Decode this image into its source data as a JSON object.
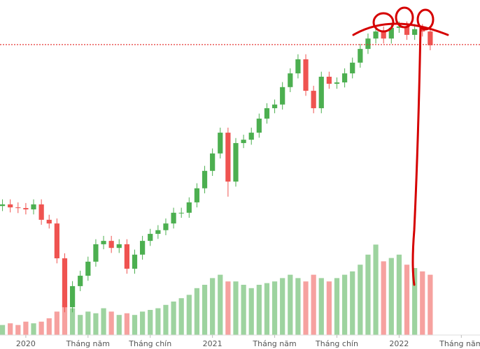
{
  "chart_data": {
    "type": "candlestick",
    "x": [
      -1.5,
      -1,
      -0.5,
      0,
      0.5,
      1,
      1.5,
      2,
      2.5,
      3,
      3.5,
      4,
      4.5,
      5,
      5.5,
      6,
      6.5,
      7,
      7.5,
      8,
      8.5,
      9,
      9.5,
      10,
      10.5,
      11,
      11.5,
      12,
      12.5,
      13,
      13.5,
      14,
      14.5,
      15,
      15.5,
      16,
      16.5,
      17,
      17.5,
      18,
      18.5,
      19,
      19.5,
      20,
      20.5,
      21,
      21.5,
      22,
      22.5,
      23,
      23.5,
      24,
      24.5,
      25,
      25.5,
      26
    ],
    "open": [
      38.5,
      39,
      38.1,
      37.9,
      37.5,
      39,
      34.4,
      33.3,
      22.9,
      8.3,
      14.6,
      17.7,
      21.9,
      27.1,
      28.1,
      26,
      27.1,
      19.8,
      24,
      28.1,
      30.2,
      31.3,
      33.3,
      36.5,
      36.5,
      39.6,
      43.8,
      49,
      54.2,
      60.4,
      45.8,
      57.3,
      58.3,
      60.4,
      64.6,
      67.7,
      68.8,
      74,
      78.1,
      82.3,
      72.9,
      67.7,
      77.1,
      75,
      75.4,
      78.1,
      81.3,
      85.4,
      88.5,
      90.6,
      88.5,
      91.7,
      92.1,
      89.6,
      91.3,
      90.6
    ],
    "high": [
      40.5,
      40.5,
      39.6,
      39.4,
      40.5,
      40.5,
      35.9,
      34.8,
      24.4,
      16.1,
      19.2,
      23.4,
      28.6,
      29.6,
      29.6,
      28.6,
      28.6,
      25.5,
      29.6,
      31.7,
      32.8,
      34.8,
      38,
      38,
      41.1,
      45.3,
      50.5,
      55.7,
      61.9,
      61.9,
      58.8,
      59.8,
      61.9,
      66.1,
      69.2,
      70.3,
      75.5,
      79.6,
      83.8,
      83.8,
      74.4,
      78.6,
      78.6,
      76.9,
      79.6,
      82.8,
      86.9,
      90,
      92.1,
      92.1,
      93.2,
      93.6,
      93.6,
      92.8,
      92.8,
      92.1
    ],
    "low": [
      37,
      36.6,
      36.4,
      36,
      36,
      32.9,
      31.8,
      21.4,
      6.8,
      6.8,
      13.1,
      16.2,
      20.4,
      25.6,
      24.5,
      24.5,
      18.3,
      18.3,
      22.5,
      26.6,
      28.7,
      29.8,
      31.8,
      35,
      35,
      38.1,
      42.3,
      47.5,
      52.7,
      41.3,
      44.3,
      55.8,
      56.8,
      58.9,
      63.1,
      66.2,
      67.3,
      72.5,
      76.6,
      71.4,
      66.2,
      66.2,
      73.5,
      73.5,
      73.9,
      76.6,
      79.8,
      83.9,
      87,
      87,
      87,
      90.2,
      88.1,
      88.1,
      89.1,
      85
    ],
    "close": [
      39,
      38.1,
      37.9,
      37.5,
      39,
      34.4,
      33.3,
      22.9,
      8.3,
      14.6,
      17.7,
      21.9,
      27.1,
      28.1,
      26,
      27.1,
      19.8,
      24,
      28.1,
      30.2,
      31.3,
      33.3,
      36.5,
      36.5,
      39.6,
      43.8,
      49,
      54.2,
      60.4,
      45.8,
      57.3,
      58.3,
      60.4,
      64.6,
      67.7,
      68.8,
      74,
      78.1,
      82.3,
      72.9,
      67.7,
      77.1,
      75,
      75.4,
      78.1,
      81.3,
      85.4,
      88.5,
      90.6,
      88.5,
      91.7,
      92.1,
      89.6,
      91.3,
      90.6,
      86.5
    ],
    "volume": [
      3,
      3.5,
      3,
      4,
      3.5,
      4,
      5,
      7,
      9,
      8,
      6,
      7,
      6.5,
      8,
      7,
      6,
      6.5,
      6,
      7,
      7.5,
      8,
      9,
      10,
      11,
      12,
      14,
      15,
      17,
      18,
      16,
      16,
      15,
      14,
      15,
      15.5,
      16,
      17,
      18,
      17,
      16,
      18,
      17,
      16,
      17,
      18,
      19,
      21,
      24,
      27,
      22,
      23,
      24,
      21,
      20,
      19,
      18
    ],
    "up_color": "#4caf50",
    "down_color": "#ef5350",
    "xlim": [
      -1.66,
      29.2
    ],
    "xticks": [
      {
        "value": 0,
        "label": "2020"
      },
      {
        "value": 4,
        "label": "Tháng năm"
      },
      {
        "value": 8,
        "label": "Tháng chín"
      },
      {
        "value": 12,
        "label": "2021"
      },
      {
        "value": 16,
        "label": "Tháng năm"
      },
      {
        "value": 20,
        "label": "Tháng chín"
      },
      {
        "value": 24,
        "label": "2022"
      },
      {
        "value": 28,
        "label": "Tháng năm"
      }
    ],
    "ylim": [
      0,
      100
    ],
    "volume_ylim": [
      0,
      100
    ],
    "reference_line": {
      "value": 86.7,
      "color": "#e53935"
    }
  }
}
